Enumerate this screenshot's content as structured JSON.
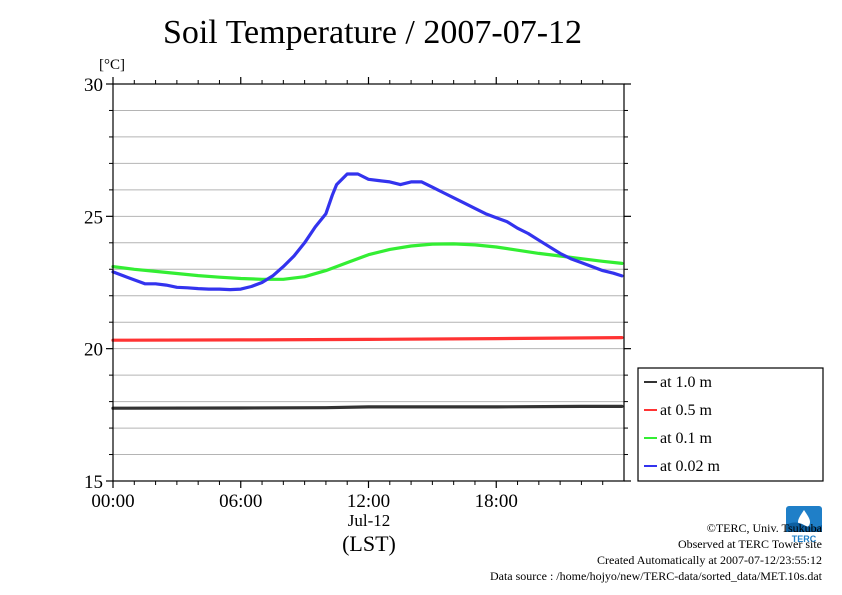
{
  "chart_data": {
    "type": "line",
    "title": "Soil Temperature / 2007-07-12",
    "ylabel_unit": "[°C]",
    "ylim": [
      15,
      30
    ],
    "xlim_hours": [
      0,
      24
    ],
    "yticks": [
      {
        "value": 15,
        "label": "15"
      },
      {
        "value": 20,
        "label": "20"
      },
      {
        "value": 25,
        "label": "25"
      },
      {
        "value": 30,
        "label": "30"
      }
    ],
    "xticks": [
      {
        "value": 0,
        "label": "00:00"
      },
      {
        "value": 6,
        "label": "06:00"
      },
      {
        "value": 12,
        "label": "12:00"
      },
      {
        "value": 18,
        "label": "18:00"
      }
    ],
    "x_sublabel": "Jul-12",
    "x_unit_label": "(LST)",
    "grid": true,
    "legend_position": "right",
    "series": [
      {
        "name": "at 1.0 m",
        "color": "#333333",
        "x": [
          0,
          6,
          10,
          12,
          14,
          18,
          22,
          23.9
        ],
        "y": [
          17.75,
          17.76,
          17.77,
          17.8,
          17.8,
          17.8,
          17.82,
          17.82
        ]
      },
      {
        "name": "at 0.5 m",
        "color": "#ff3333",
        "x": [
          0,
          6,
          12,
          18,
          23.9
        ],
        "y": [
          20.32,
          20.33,
          20.35,
          20.38,
          20.42
        ]
      },
      {
        "name": "at 0.1 m",
        "color": "#33ee33",
        "x": [
          0,
          1,
          2,
          3,
          4,
          5,
          6,
          7,
          8,
          9,
          10,
          11,
          12,
          13,
          14,
          15,
          16,
          17,
          18,
          19,
          20,
          21,
          22,
          23,
          23.9
        ],
        "y": [
          23.1,
          23.0,
          22.92,
          22.84,
          22.76,
          22.7,
          22.65,
          22.62,
          22.62,
          22.72,
          22.95,
          23.25,
          23.55,
          23.75,
          23.88,
          23.95,
          23.96,
          23.92,
          23.84,
          23.72,
          23.6,
          23.5,
          23.4,
          23.3,
          23.22
        ]
      },
      {
        "name": "at 0.02 m",
        "color": "#3333ee",
        "x": [
          0,
          0.5,
          1,
          1.5,
          2,
          2.5,
          3,
          3.5,
          4,
          4.5,
          5,
          5.5,
          6,
          6.5,
          7,
          7.5,
          8,
          8.5,
          9,
          9.5,
          10,
          10.3,
          10.5,
          11,
          11.5,
          12,
          12.5,
          13,
          13.5,
          14,
          14.5,
          15,
          15.5,
          16,
          16.5,
          17,
          17.5,
          18,
          18.5,
          19,
          19.5,
          20,
          20.5,
          21,
          21.5,
          22,
          22.5,
          23,
          23.5,
          23.9
        ],
        "y": [
          22.9,
          22.75,
          22.6,
          22.45,
          22.45,
          22.4,
          22.32,
          22.3,
          22.27,
          22.25,
          22.25,
          22.23,
          22.25,
          22.35,
          22.5,
          22.75,
          23.1,
          23.5,
          24.0,
          24.6,
          25.1,
          25.8,
          26.2,
          26.6,
          26.6,
          26.4,
          26.35,
          26.3,
          26.2,
          26.3,
          26.3,
          26.1,
          25.9,
          25.7,
          25.5,
          25.3,
          25.1,
          24.95,
          24.8,
          24.55,
          24.35,
          24.1,
          23.85,
          23.6,
          23.4,
          23.25,
          23.1,
          22.95,
          22.85,
          22.75
        ]
      }
    ]
  },
  "credits": {
    "copyright": "©TERC, Univ. Tsukuba",
    "observed": "Observed at TERC Tower site",
    "created": "Created Automatically at 2007-07-12/23:55:12",
    "source": "Data source : /home/hojyo/new/TERC-data/sorted_data/MET.10s.dat"
  },
  "logo": {
    "text": "TERC",
    "color": "#1f7fc8"
  }
}
